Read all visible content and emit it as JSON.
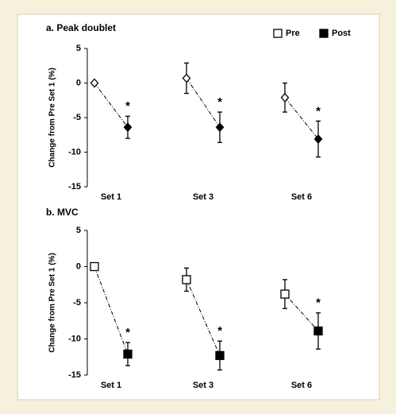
{
  "chart_data": [
    {
      "type": "dot",
      "title": "a. Peak doublet",
      "y_label": "Change from Pre Set 1 (%)",
      "marker": "diamond",
      "categories": [
        "Set 1",
        "Set 3",
        "Set 6"
      ],
      "series": [
        {
          "name": "Pre",
          "color": "#000000",
          "fill": "#ffffff",
          "values": [
            0,
            0.7,
            -2.1
          ],
          "errors": [
            null,
            2.2,
            2.1
          ]
        },
        {
          "name": "Post",
          "color": "#000000",
          "fill": "#000000",
          "values": [
            -6.4,
            -6.4,
            -8.1
          ],
          "errors": [
            1.6,
            2.2,
            2.6
          ]
        }
      ],
      "annotations": [
        "*",
        "*",
        "*"
      ],
      "ylim": [
        -15,
        5
      ],
      "yticks": [
        -15,
        -10,
        -5,
        0,
        5
      ],
      "legend": "upper right"
    },
    {
      "type": "dot",
      "title": "b. MVC",
      "y_label": "Change from Pre Set 1 (%)",
      "marker": "square",
      "categories": [
        "Set 1",
        "Set 3",
        "Set 6"
      ],
      "series": [
        {
          "name": "Pre",
          "color": "#000000",
          "fill": "#ffffff",
          "values": [
            0,
            -1.8,
            -3.8
          ],
          "errors": [
            null,
            1.6,
            2.0
          ]
        },
        {
          "name": "Post",
          "color": "#000000",
          "fill": "#000000",
          "values": [
            -12.1,
            -12.3,
            -8.9
          ],
          "errors": [
            1.6,
            2.0,
            2.5
          ]
        }
      ],
      "annotations": [
        "*",
        "*",
        "*"
      ],
      "ylim": [
        -15,
        5
      ],
      "yticks": [
        -15,
        -10,
        -5,
        0,
        5
      ],
      "legend": "none"
    }
  ]
}
